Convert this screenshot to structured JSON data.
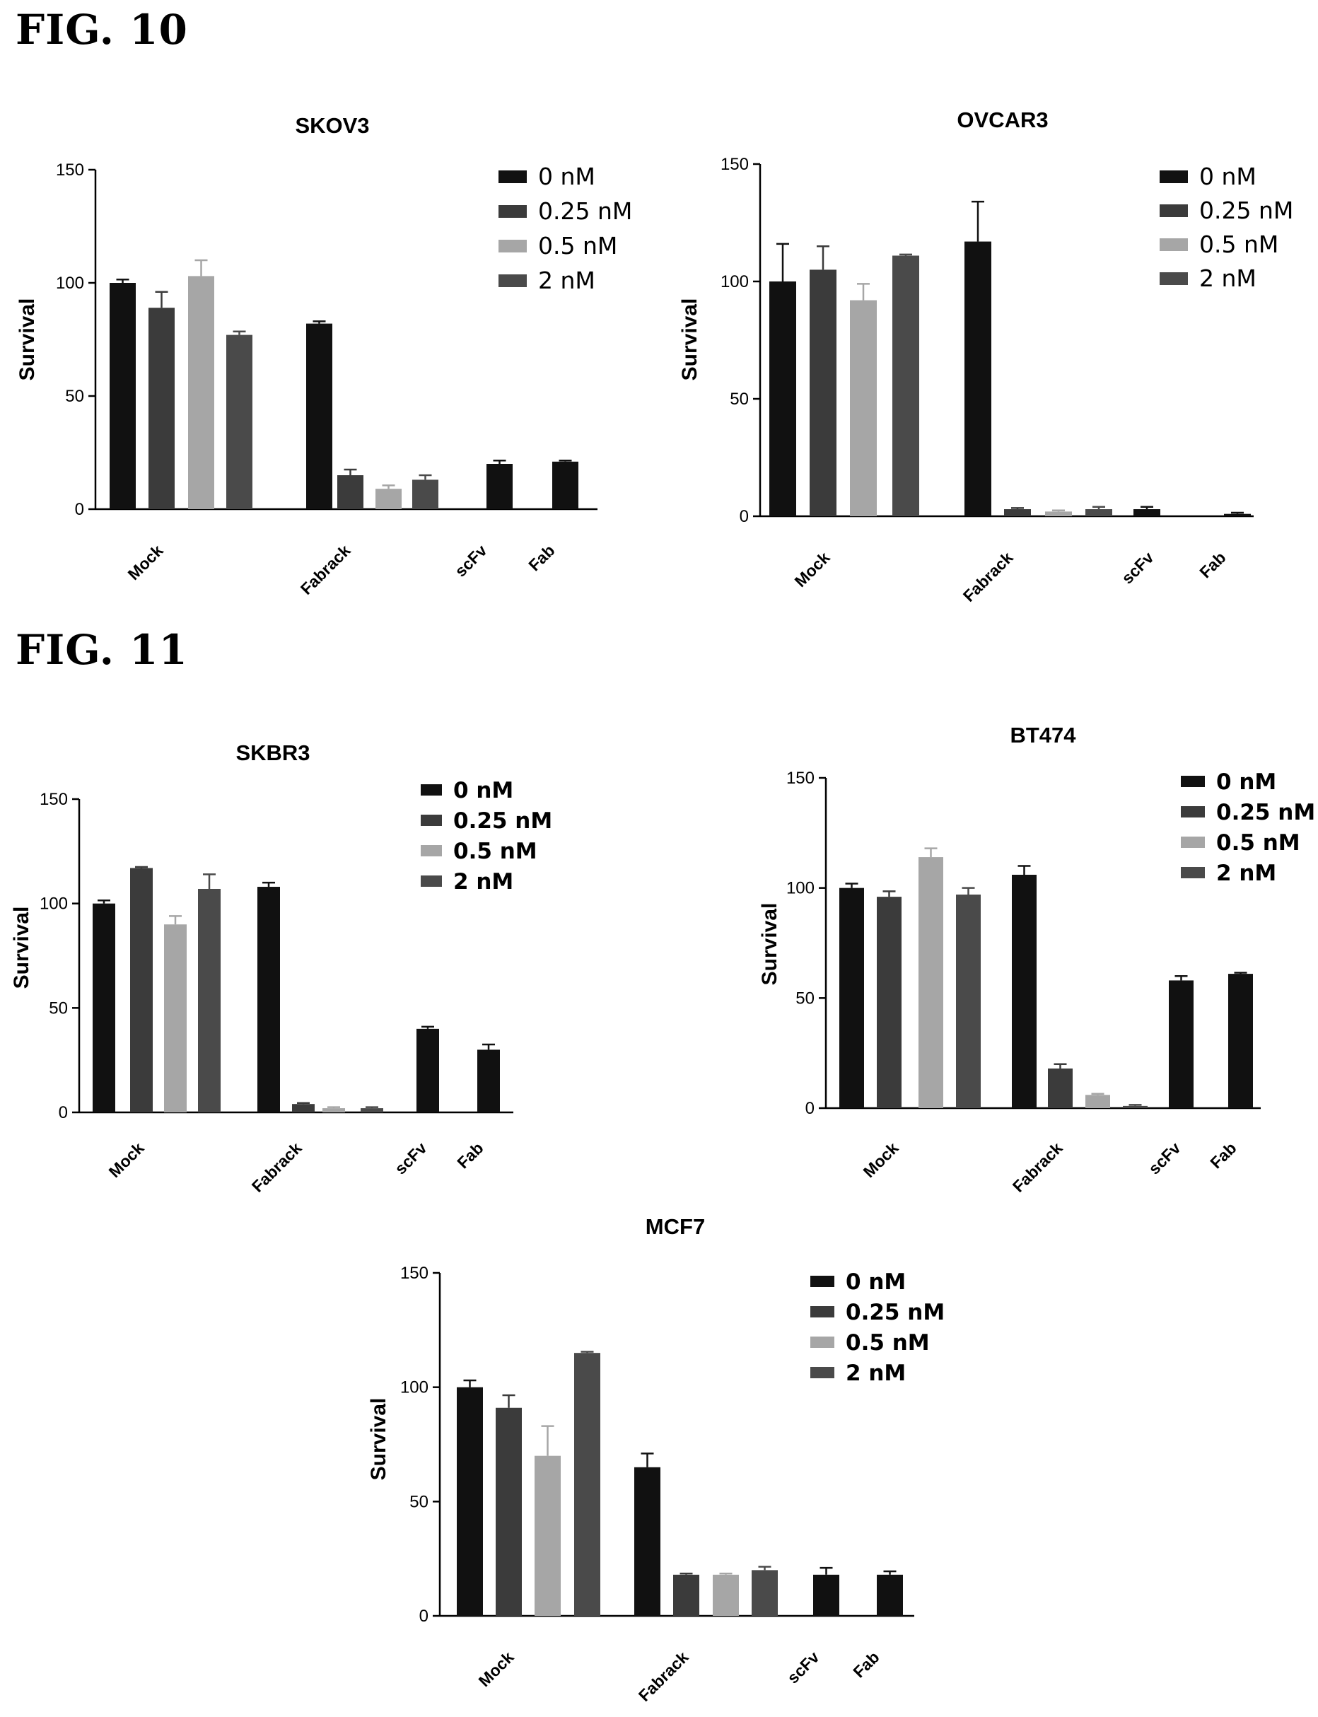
{
  "figures": [
    {
      "label": "FIG. 10"
    },
    {
      "label": "FIG. 11"
    }
  ],
  "colors": {
    "0 nM": "#111111",
    "0.25 nM": "#3b3b3b",
    "0.5 nM": "#a6a6a6",
    "2 nM": "#4a4a4a"
  },
  "chart_data": [
    {
      "type": "bar",
      "title": "SKOV3",
      "ylabel": "Survival",
      "ylim": [
        0,
        150
      ],
      "yticks": [
        0,
        50,
        100,
        150
      ],
      "groups": [
        "Mock",
        "Fabrack",
        "scFv",
        "Fab"
      ],
      "legend": [
        "0 nM",
        "0.25 nM",
        "0.5 nM",
        "2 nM"
      ],
      "legend_position": "top-right",
      "bars": [
        {
          "group": "Mock",
          "series": "0 nM",
          "value": 100,
          "error": 1.5
        },
        {
          "group": "Mock",
          "series": "0.25 nM",
          "value": 89,
          "error": 7
        },
        {
          "group": "Mock",
          "series": "0.5 nM",
          "value": 103,
          "error": 7
        },
        {
          "group": "Mock",
          "series": "2 nM",
          "value": 77,
          "error": 1.5
        },
        {
          "group": "Fabrack",
          "series": "0 nM",
          "value": 82,
          "error": 1
        },
        {
          "group": "Fabrack",
          "series": "0.25 nM",
          "value": 15,
          "error": 2.5
        },
        {
          "group": "Fabrack",
          "series": "0.5 nM",
          "value": 9,
          "error": 1.5
        },
        {
          "group": "Fabrack",
          "series": "2 nM",
          "value": 13,
          "error": 2
        },
        {
          "group": "scFv",
          "series": "0 nM",
          "value": 20,
          "error": 1.5
        },
        {
          "group": "Fab",
          "series": "0 nM",
          "value": 21,
          "error": 0.5
        }
      ]
    },
    {
      "type": "bar",
      "title": "OVCAR3",
      "ylabel": "Survival",
      "ylim": [
        0,
        150
      ],
      "yticks": [
        0,
        50,
        100,
        150
      ],
      "groups": [
        "Mock",
        "Fabrack",
        "scFv",
        "Fab"
      ],
      "legend": [
        "0 nM",
        "0.25 nM",
        "0.5 nM",
        "2 nM"
      ],
      "legend_position": "top-right",
      "bars": [
        {
          "group": "Mock",
          "series": "0 nM",
          "value": 100,
          "error": 16
        },
        {
          "group": "Mock",
          "series": "0.25 nM",
          "value": 105,
          "error": 10
        },
        {
          "group": "Mock",
          "series": "0.5 nM",
          "value": 92,
          "error": 7
        },
        {
          "group": "Mock",
          "series": "2 nM",
          "value": 111,
          "error": 0.5
        },
        {
          "group": "Fabrack",
          "series": "0 nM",
          "value": 117,
          "error": 17
        },
        {
          "group": "Fabrack",
          "series": "0.25 nM",
          "value": 3,
          "error": 0.5
        },
        {
          "group": "Fabrack",
          "series": "0.5 nM",
          "value": 2,
          "error": 0.5
        },
        {
          "group": "Fabrack",
          "series": "2 nM",
          "value": 3,
          "error": 1
        },
        {
          "group": "scFv",
          "series": "0 nM",
          "value": 3,
          "error": 1
        },
        {
          "group": "Fab",
          "series": "0 nM",
          "value": 1,
          "error": 0.5
        }
      ]
    },
    {
      "type": "bar",
      "title": "SKBR3",
      "ylabel": "Survival",
      "ylim": [
        0,
        150
      ],
      "yticks": [
        0,
        50,
        100,
        150
      ],
      "groups": [
        "Mock",
        "Fabrack",
        "scFv",
        "Fab"
      ],
      "legend": [
        "0 nM",
        "0.25 nM",
        "0.5 nM",
        "2 nM"
      ],
      "legend_position": "top-right",
      "bars": [
        {
          "group": "Mock",
          "series": "0 nM",
          "value": 100,
          "error": 1.5
        },
        {
          "group": "Mock",
          "series": "0.25 nM",
          "value": 117,
          "error": 0.5
        },
        {
          "group": "Mock",
          "series": "0.5 nM",
          "value": 90,
          "error": 4
        },
        {
          "group": "Mock",
          "series": "2 nM",
          "value": 107,
          "error": 7
        },
        {
          "group": "Fabrack",
          "series": "0 nM",
          "value": 108,
          "error": 2
        },
        {
          "group": "Fabrack",
          "series": "0.25 nM",
          "value": 4,
          "error": 0.5
        },
        {
          "group": "Fabrack",
          "series": "0.5 nM",
          "value": 2,
          "error": 0.5
        },
        {
          "group": "Fabrack",
          "series": "2 nM",
          "value": 2,
          "error": 0.5
        },
        {
          "group": "scFv",
          "series": "0 nM",
          "value": 40,
          "error": 1
        },
        {
          "group": "Fab",
          "series": "0 nM",
          "value": 30,
          "error": 2.5
        }
      ]
    },
    {
      "type": "bar",
      "title": "BT474",
      "ylabel": "Survival",
      "ylim": [
        0,
        150
      ],
      "yticks": [
        0,
        50,
        100,
        150
      ],
      "groups": [
        "Mock",
        "Fabrack",
        "scFv",
        "Fab"
      ],
      "legend": [
        "0 nM",
        "0.25 nM",
        "0.5 nM",
        "2 nM"
      ],
      "legend_position": "top-right",
      "bars": [
        {
          "group": "Mock",
          "series": "0 nM",
          "value": 100,
          "error": 2
        },
        {
          "group": "Mock",
          "series": "0.25 nM",
          "value": 96,
          "error": 2.5
        },
        {
          "group": "Mock",
          "series": "0.5 nM",
          "value": 114,
          "error": 4
        },
        {
          "group": "Mock",
          "series": "2 nM",
          "value": 97,
          "error": 3
        },
        {
          "group": "Fabrack",
          "series": "0 nM",
          "value": 106,
          "error": 4
        },
        {
          "group": "Fabrack",
          "series": "0.25 nM",
          "value": 18,
          "error": 2
        },
        {
          "group": "Fabrack",
          "series": "0.5 nM",
          "value": 6,
          "error": 0.5
        },
        {
          "group": "Fabrack",
          "series": "2 nM",
          "value": 1,
          "error": 0.5
        },
        {
          "group": "scFv",
          "series": "0 nM",
          "value": 58,
          "error": 2
        },
        {
          "group": "Fab",
          "series": "0 nM",
          "value": 61,
          "error": 0.5
        }
      ]
    },
    {
      "type": "bar",
      "title": "MCF7",
      "ylabel": "Survival",
      "ylim": [
        0,
        150
      ],
      "yticks": [
        0,
        50,
        100,
        150
      ],
      "groups": [
        "Mock",
        "Fabrack",
        "scFv",
        "Fab"
      ],
      "legend": [
        "0 nM",
        "0.25 nM",
        "0.5 nM",
        "2 nM"
      ],
      "legend_position": "top-right",
      "bars": [
        {
          "group": "Mock",
          "series": "0 nM",
          "value": 100,
          "error": 3
        },
        {
          "group": "Mock",
          "series": "0.25 nM",
          "value": 91,
          "error": 5.5
        },
        {
          "group": "Mock",
          "series": "0.5 nM",
          "value": 70,
          "error": 13
        },
        {
          "group": "Mock",
          "series": "2 nM",
          "value": 115,
          "error": 0.5
        },
        {
          "group": "Fabrack",
          "series": "0 nM",
          "value": 65,
          "error": 6
        },
        {
          "group": "Fabrack",
          "series": "0.25 nM",
          "value": 18,
          "error": 0.5
        },
        {
          "group": "Fabrack",
          "series": "0.5 nM",
          "value": 18,
          "error": 0.5
        },
        {
          "group": "Fabrack",
          "series": "2 nM",
          "value": 20,
          "error": 1.5
        },
        {
          "group": "scFv",
          "series": "0 nM",
          "value": 18,
          "error": 3
        },
        {
          "group": "Fab",
          "series": "0 nM",
          "value": 18,
          "error": 1.5
        }
      ]
    }
  ]
}
